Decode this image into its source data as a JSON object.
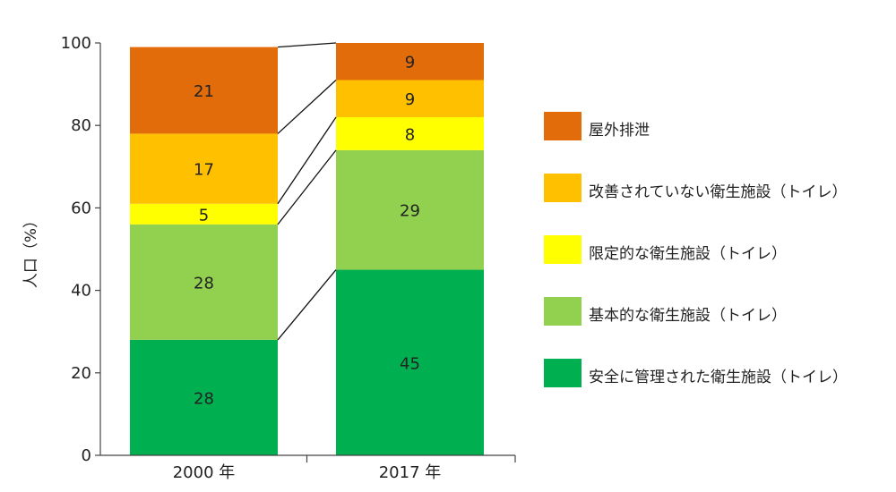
{
  "chart_data": {
    "type": "bar",
    "stacked": true,
    "categories": [
      "2000 年",
      "2017 年"
    ],
    "ylabel": "人口（%）",
    "ylim": [
      0,
      100
    ],
    "yticks": [
      0,
      20,
      40,
      60,
      80,
      100
    ],
    "grid": false,
    "legend_position": "right",
    "connector_lines": true,
    "series": [
      {
        "name": "安全に管理された衛生施設（トイレ）",
        "color": "#00b050",
        "values": [
          28,
          45
        ]
      },
      {
        "name": "基本的な衛生施設（トイレ）",
        "color": "#92d050",
        "values": [
          28,
          29
        ]
      },
      {
        "name": "限定的な衛生施設（トイレ）",
        "color": "#ffff00",
        "values": [
          5,
          8
        ]
      },
      {
        "name": "改善されていない衛生施設（トイレ）",
        "color": "#ffc000",
        "values": [
          17,
          9
        ]
      },
      {
        "name": "屋外排泄",
        "color": "#e36c0a",
        "values": [
          21,
          9
        ]
      }
    ]
  }
}
